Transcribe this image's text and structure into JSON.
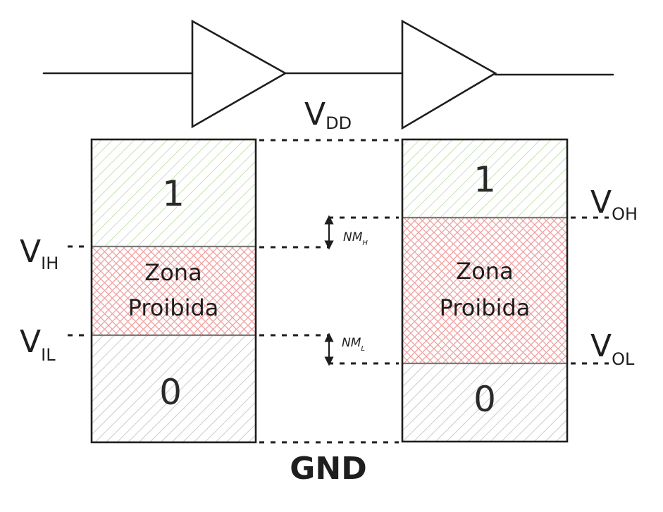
{
  "labels": {
    "vdd": {
      "main": "V",
      "sub": "DD"
    },
    "gnd": "GND",
    "vih": {
      "main": "V",
      "sub": "IH"
    },
    "vil": {
      "main": "V",
      "sub": "IL"
    },
    "voh": {
      "main": "V",
      "sub": "OH"
    },
    "vol": {
      "main": "V",
      "sub": "OL"
    },
    "nmh": {
      "main": "NM",
      "sub": "H"
    },
    "nml": {
      "main": "NM",
      "sub": "L"
    }
  },
  "input_bar": {
    "high_label": "1",
    "forbidden_line1": "Zona",
    "forbidden_line2": "Proibida",
    "low_label": "0"
  },
  "output_bar": {
    "high_label": "1",
    "forbidden_line1": "Zona",
    "forbidden_line2": "Proibida",
    "low_label": "0"
  },
  "colors": {
    "logic_high_hatch": "#b6dca0",
    "forbidden_hatch": "#f0a0a0",
    "logic_low_hatch": "#bdbdbd",
    "stroke": "#1e1e1e"
  }
}
